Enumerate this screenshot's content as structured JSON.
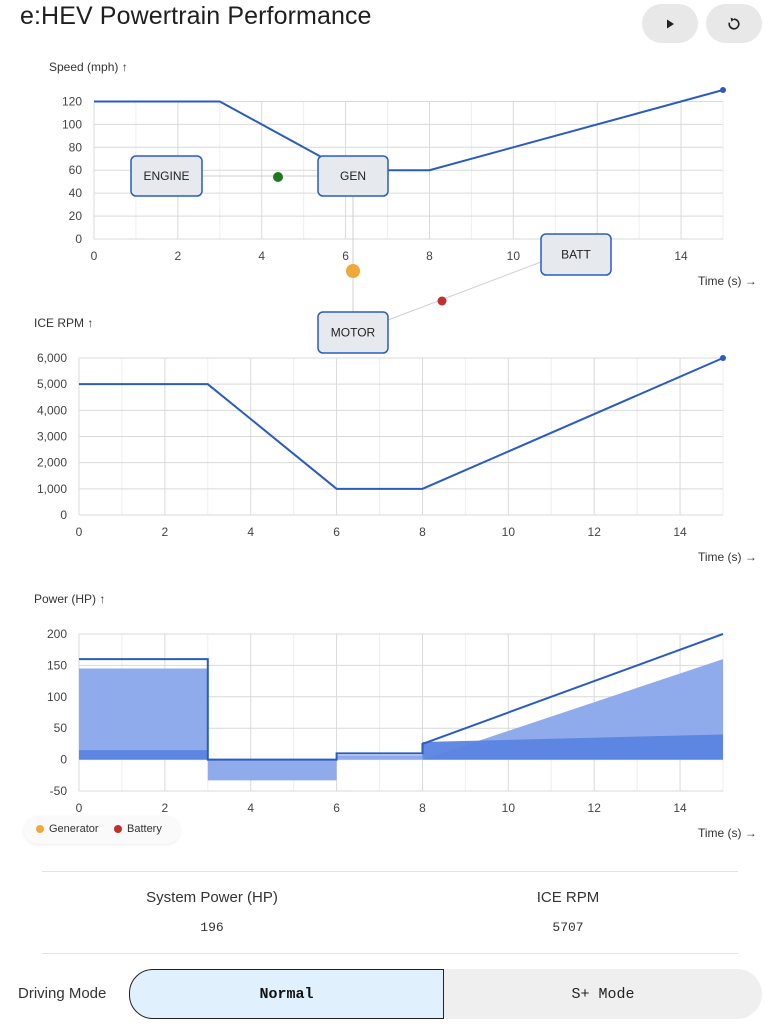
{
  "app": {
    "title": "e:HEV Powertrain Performance"
  },
  "controls": {
    "play_icon": "play-icon",
    "reset_icon": "reset-icon"
  },
  "colors": {
    "line": "#2a5cc0",
    "area_light": "#8aa6ea",
    "area_dark": "#5a84e0",
    "grid": "#d9d9d9",
    "generator": "#f0a838",
    "battery": "#c0302c",
    "engine_dot": "#1e7a1e"
  },
  "flow_diagram": {
    "nodes": {
      "engine": "ENGINE",
      "gen": "GEN",
      "motor": "MOTOR",
      "batt": "BATT"
    }
  },
  "chart_data": [
    {
      "type": "line",
      "ylabel": "Speed (mph) ↑",
      "xlabel": "Time (s) →",
      "xlim": [
        0,
        15
      ],
      "ylim": [
        0,
        130
      ],
      "x_ticks": [
        0,
        2,
        4,
        6,
        8,
        10,
        12,
        14
      ],
      "y_ticks": [
        0,
        20,
        40,
        60,
        80,
        100,
        120
      ],
      "x": [
        0,
        3,
        6,
        8,
        15
      ],
      "series": [
        {
          "values": [
            120,
            120,
            60,
            60,
            130
          ]
        }
      ],
      "grid": true
    },
    {
      "type": "line",
      "ylabel": "ICE RPM ↑",
      "xlabel": "Time (s) →",
      "xlim": [
        0,
        15
      ],
      "ylim": [
        0,
        6000
      ],
      "x_ticks": [
        0,
        2,
        4,
        6,
        8,
        10,
        12,
        14
      ],
      "y_ticks": [
        0,
        1000,
        2000,
        3000,
        4000,
        5000,
        6000
      ],
      "y_tick_labels": [
        "0",
        "1,000",
        "2,000",
        "3,000",
        "4,000",
        "5,000",
        "6,000"
      ],
      "x": [
        0,
        3,
        6,
        8,
        15
      ],
      "series": [
        {
          "values": [
            5000,
            5000,
            1000,
            1000,
            6000
          ]
        }
      ],
      "grid": true
    },
    {
      "type": "area",
      "ylabel": "Power (HP) ↑",
      "xlabel": "Time (s) →",
      "xlim": [
        0,
        15
      ],
      "ylim": [
        -50,
        200
      ],
      "x_ticks": [
        0,
        2,
        4,
        6,
        8,
        10,
        12,
        14
      ],
      "y_ticks": [
        -50,
        0,
        50,
        100,
        150,
        200
      ],
      "legend": {
        "placement": "bottom-left",
        "entries": [
          "Generator",
          "Battery"
        ]
      },
      "series": [
        {
          "name": "Generator",
          "points": [
            [
              0,
              145
            ],
            [
              3,
              145
            ],
            [
              3,
              -33
            ],
            [
              6,
              -33
            ],
            [
              6,
              7
            ],
            [
              8,
              7
            ],
            [
              8,
              0
            ],
            [
              15,
              160
            ],
            [
              15,
              0
            ],
            [
              0,
              0
            ]
          ]
        },
        {
          "name": "Battery",
          "points": [
            [
              0,
              15
            ],
            [
              3,
              15
            ],
            [
              3,
              0
            ],
            [
              6,
              0
            ],
            [
              6,
              0
            ],
            [
              8,
              0
            ],
            [
              8,
              28
            ],
            [
              15,
              40
            ],
            [
              15,
              0
            ],
            [
              0,
              0
            ]
          ]
        },
        {
          "name": "System Power",
          "line_points": [
            [
              0,
              160
            ],
            [
              3,
              160
            ],
            [
              3,
              0
            ],
            [
              6,
              0
            ],
            [
              6,
              10
            ],
            [
              8,
              10
            ],
            [
              8,
              25
            ],
            [
              15,
              200
            ]
          ]
        }
      ],
      "grid": true
    }
  ],
  "stats": {
    "system_power_label": "System Power (HP)",
    "system_power_value": "196",
    "ice_rpm_label": "ICE RPM",
    "ice_rpm_value": "5707"
  },
  "driving_mode": {
    "label": "Driving Mode",
    "options": [
      "Normal",
      "S+ Mode"
    ],
    "selected": "Normal"
  }
}
